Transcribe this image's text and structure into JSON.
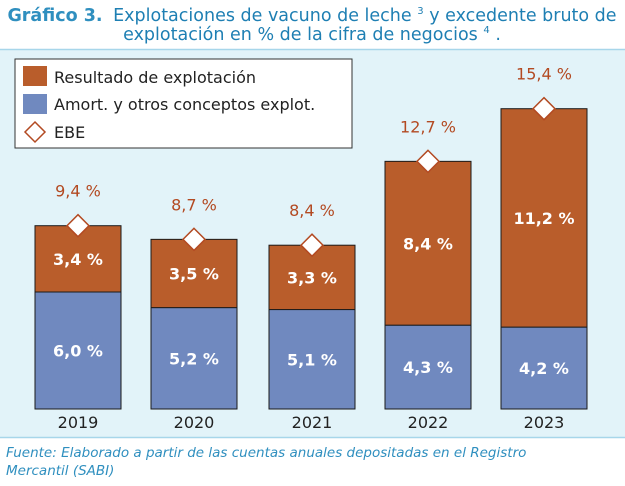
{
  "title": {
    "prefix": "Gráfico 3.",
    "line1": "Explotaciones de vacuno de leche",
    "line1_sup": "3",
    "line1_rest": " y excedente bruto de",
    "line2": "explotación en % de la cifra de negocios",
    "line2_sup": "4",
    "line2_end": "."
  },
  "source": {
    "line1": "Fuente: Elaborado a partir de las cuentas anuales depositadas en el Registro",
    "line2": "Mercantil (SABI)"
  },
  "colors": {
    "panel_bg": "#e2f3f9",
    "frame": "#a7d6ea",
    "title_accent": "#2f8fbf",
    "title_text": "#1e7fb3",
    "resultado": "#b95d2b",
    "amort": "#7089bf",
    "ebe_label": "#b34a22",
    "axis_text": "#222222",
    "source_text": "#2f8fbf"
  },
  "chart_data": {
    "type": "bar",
    "stacked": true,
    "categories": [
      "2019",
      "2020",
      "2021",
      "2022",
      "2023"
    ],
    "series": [
      {
        "name": "Amort. y otros conceptos explot.",
        "values": [
          6.0,
          5.2,
          5.1,
          4.3,
          4.2
        ],
        "labels": [
          "6,0 %",
          "5,2 %",
          "5,1 %",
          "4,3 %",
          "4,2 %"
        ]
      },
      {
        "name": "Resultado de explotación",
        "values": [
          3.4,
          3.5,
          3.3,
          8.4,
          11.2
        ],
        "labels": [
          "3,4 %",
          "3,5 %",
          "3,3 %",
          "8,4 %",
          "11,2 %"
        ]
      }
    ],
    "ebe": {
      "name": "EBE",
      "values": [
        9.4,
        8.7,
        8.4,
        12.7,
        15.4
      ],
      "labels": [
        "9,4 %",
        "8,7 %",
        "8,4 %",
        "12,7 %",
        "15,4 %"
      ]
    },
    "ylim": [
      0,
      20
    ],
    "legend": {
      "position": "top-left",
      "entries": [
        "Resultado de explotación",
        "Amort. y otros conceptos explot.",
        "EBE"
      ]
    },
    "grid": false
  }
}
